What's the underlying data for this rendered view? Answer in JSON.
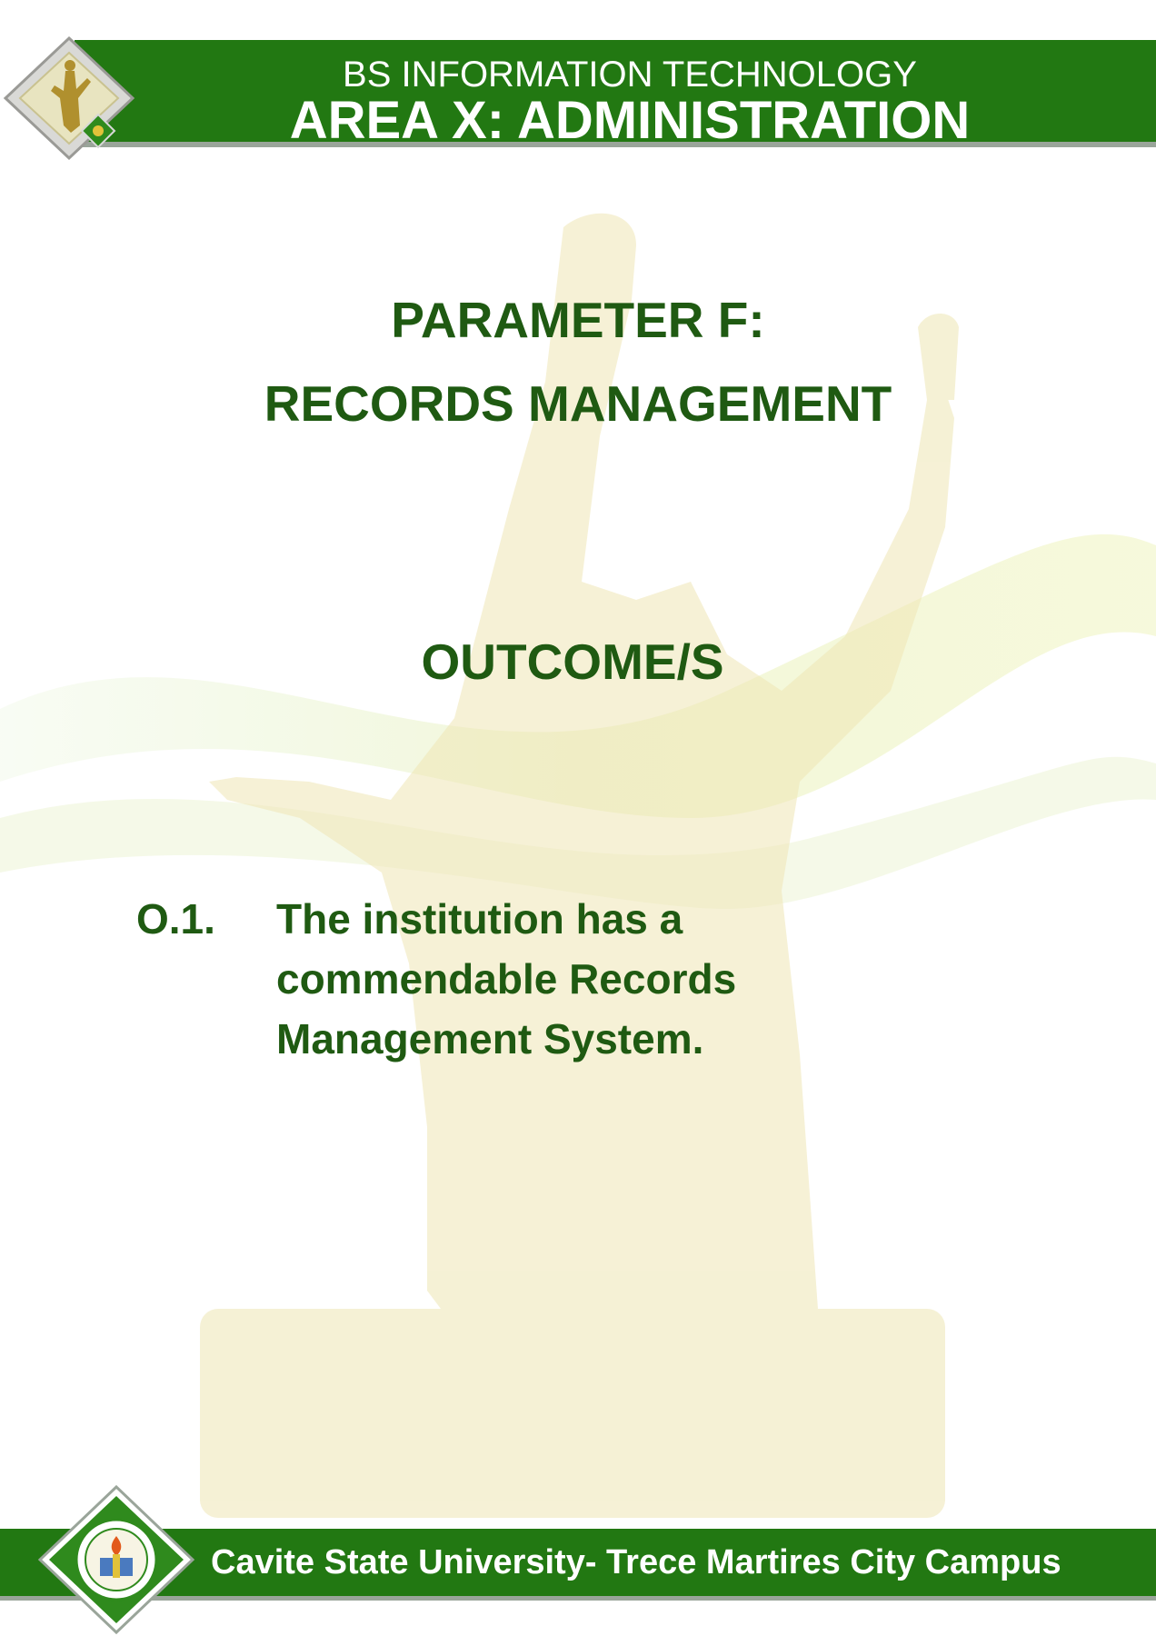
{
  "header": {
    "program": "BS INFORMATION TECHNOLOGY",
    "area": "AREA X: ADMINISTRATION"
  },
  "parameter": {
    "line1": "PARAMETER F:",
    "line2": "RECORDS MANAGEMENT"
  },
  "outcomes": {
    "heading": "OUTCOME/S",
    "items": [
      {
        "number": "O.1.",
        "lines": [
          "The institution has a",
          "commendable Records",
          "Management System."
        ]
      }
    ]
  },
  "footer": {
    "campus": "Cavite State University- Trece Martires City Campus"
  },
  "colors": {
    "brand_green": "#227812",
    "text_green": "#1f5a12"
  },
  "icons": {
    "top_logo": "statue-diamond-logo-icon",
    "bottom_seal": "university-seal-icon",
    "background": "monument-statue-watermark"
  }
}
